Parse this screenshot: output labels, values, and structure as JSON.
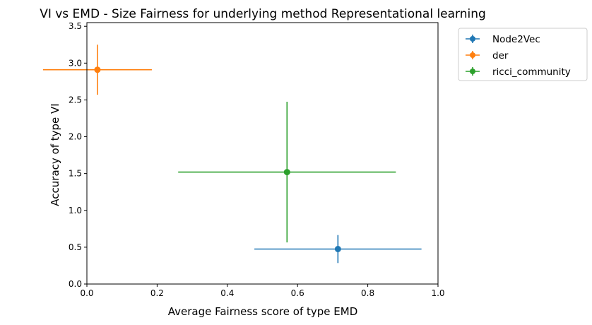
{
  "chart_data": {
    "type": "scatter",
    "title": "VI vs EMD - Size Fairness for underlying method Representational learning",
    "xlabel": "Average Fairness score of type EMD",
    "ylabel": "Accuracy of type VI",
    "xlim": [
      0.0,
      1.0
    ],
    "ylim": [
      0.0,
      3.55
    ],
    "xticks": [
      0.0,
      0.2,
      0.4,
      0.6,
      0.8,
      1.0
    ],
    "yticks": [
      0.0,
      0.5,
      1.0,
      1.5,
      2.0,
      2.5,
      3.0,
      3.5
    ],
    "xtick_labels": [
      "0.0",
      "0.2",
      "0.4",
      "0.6",
      "0.8",
      "1.0"
    ],
    "ytick_labels": [
      "0.0",
      "0.5",
      "1.0",
      "1.5",
      "2.0",
      "2.5",
      "3.0",
      "3.5"
    ],
    "grid": false,
    "legend_position": "outside-top-right",
    "series": [
      {
        "name": "Node2Vec",
        "color": "#1f77b4",
        "x": 0.715,
        "y": 0.475,
        "xerr": 0.238,
        "yerr": 0.19
      },
      {
        "name": "der",
        "color": "#ff7f0e",
        "x": 0.03,
        "y": 2.91,
        "xerr": 0.155,
        "yerr": 0.34
      },
      {
        "name": "ricci_community",
        "color": "#2ca02c",
        "x": 0.57,
        "y": 1.52,
        "xerr": 0.31,
        "yerr": 0.955
      }
    ]
  }
}
